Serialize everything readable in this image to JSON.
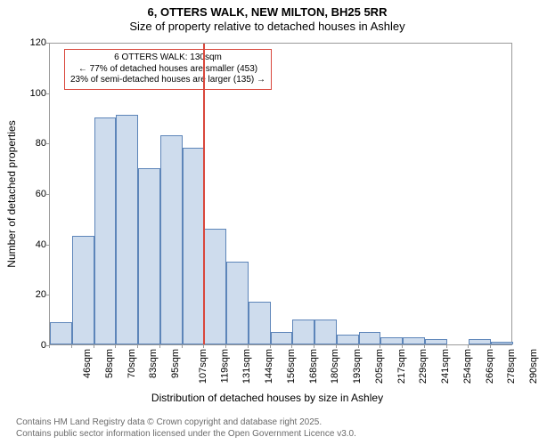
{
  "title": {
    "line1": "6, OTTERS WALK, NEW MILTON, BH25 5RR",
    "line2": "Size of property relative to detached houses in Ashley"
  },
  "yaxis": {
    "title": "Number of detached properties",
    "min": 0,
    "max": 120,
    "ticks": [
      0,
      20,
      40,
      60,
      80,
      100,
      120
    ]
  },
  "xaxis": {
    "title": "Distribution of detached houses by size in Ashley"
  },
  "chart": {
    "type": "histogram",
    "bar_fill": "#cedced",
    "bar_stroke": "#5d85b9",
    "background": "#ffffff",
    "axis_color": "#9a9a9a",
    "ref_line_color": "#d9473c",
    "ref_line_x_index": 7,
    "bins": [
      {
        "label": "46sqm",
        "value": 9
      },
      {
        "label": "58sqm",
        "value": 43
      },
      {
        "label": "70sqm",
        "value": 90
      },
      {
        "label": "83sqm",
        "value": 91
      },
      {
        "label": "95sqm",
        "value": 70
      },
      {
        "label": "107sqm",
        "value": 83
      },
      {
        "label": "119sqm",
        "value": 78
      },
      {
        "label": "131sqm",
        "value": 46
      },
      {
        "label": "144sqm",
        "value": 33
      },
      {
        "label": "156sqm",
        "value": 17
      },
      {
        "label": "168sqm",
        "value": 5
      },
      {
        "label": "180sqm",
        "value": 10
      },
      {
        "label": "193sqm",
        "value": 10
      },
      {
        "label": "205sqm",
        "value": 4
      },
      {
        "label": "217sqm",
        "value": 5
      },
      {
        "label": "229sqm",
        "value": 3
      },
      {
        "label": "241sqm",
        "value": 3
      },
      {
        "label": "254sqm",
        "value": 2
      },
      {
        "label": "266sqm",
        "value": 0
      },
      {
        "label": "278sqm",
        "value": 2
      },
      {
        "label": "290sqm",
        "value": 1
      }
    ]
  },
  "annotation": {
    "line1": "6 OTTERS WALK: 130sqm",
    "line2": "← 77% of detached houses are smaller (453)",
    "line3": "23% of semi-detached houses are larger (135) →"
  },
  "footer": {
    "line1": "Contains HM Land Registry data © Crown copyright and database right 2025.",
    "line2": "Contains public sector information licensed under the Open Government Licence v3.0."
  }
}
